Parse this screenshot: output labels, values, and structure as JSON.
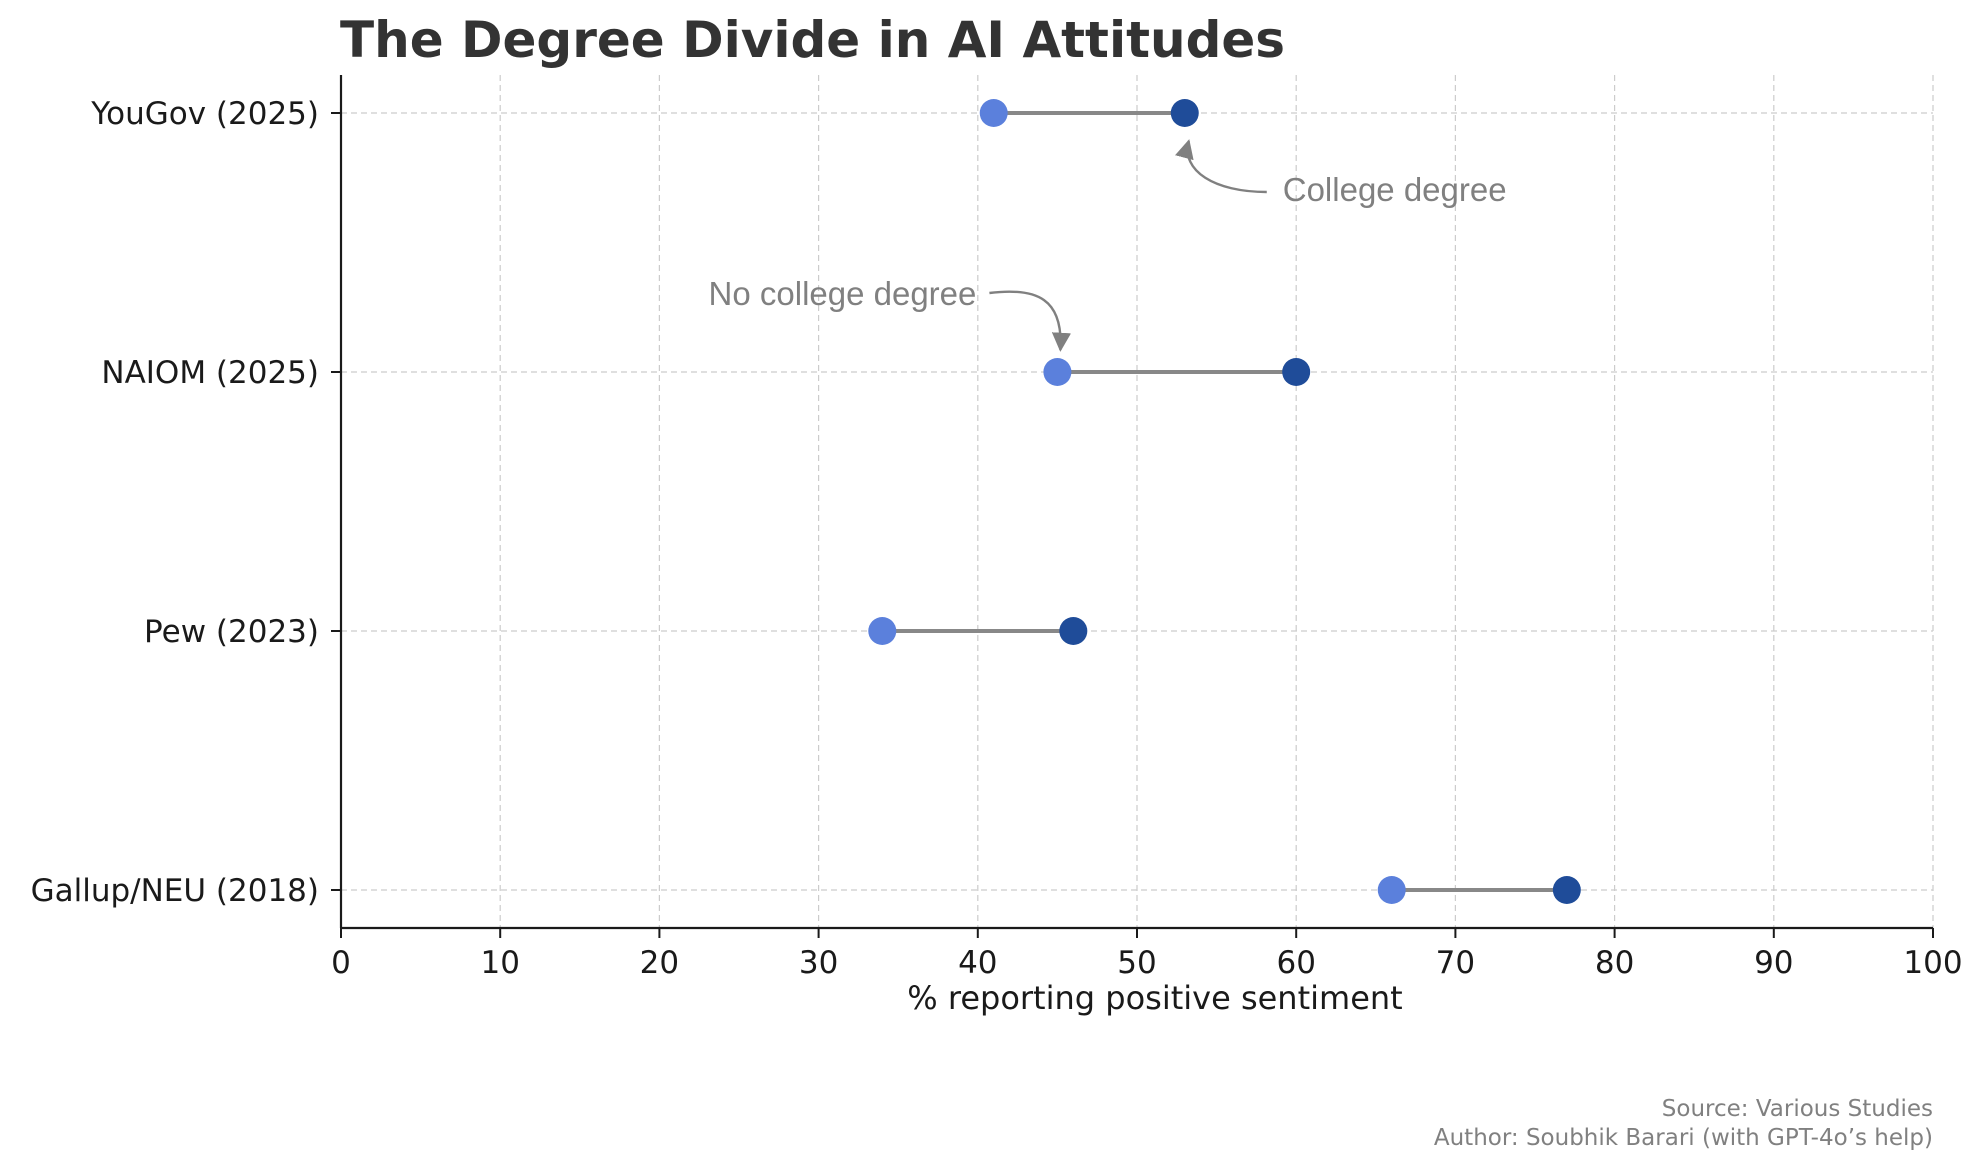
{
  "chart_data": {
    "type": "dumbbell",
    "title": "The Degree Divide in AI Attitudes",
    "xlabel": "% reporting positive sentiment",
    "ylabel": "",
    "xlim": [
      0,
      100
    ],
    "x_ticks": [
      "0",
      "10",
      "20",
      "30",
      "40",
      "50",
      "60",
      "70",
      "80",
      "90",
      "100"
    ],
    "grid": true,
    "categories": [
      "YouGov (2025)",
      "NAIOM (2025)",
      "Pew (2023)",
      "Gallup/NEU (2018)"
    ],
    "series": [
      {
        "name": "No college degree",
        "color": "#5b80dc",
        "values": [
          41,
          45,
          34,
          66
        ]
      },
      {
        "name": "College degree",
        "color": "#1f4c99",
        "values": [
          53,
          60,
          46,
          77
        ]
      }
    ],
    "annotations": [
      {
        "text": "College degree",
        "series": "College degree",
        "category": "YouGov (2025)"
      },
      {
        "text": "No college degree",
        "series": "No college degree",
        "category": "NAIOM (2025)"
      }
    ],
    "source": "Source: Various Studies",
    "author": "Author: Soubhik Barari (with GPT-4o’s help)"
  },
  "colors": {
    "connector": "#888888",
    "grid": "#cccccc",
    "axis": "#1a1a1a",
    "annotation": "#808080"
  }
}
